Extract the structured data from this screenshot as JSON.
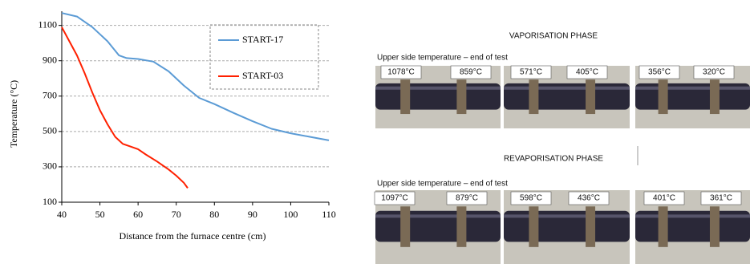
{
  "chart_data": {
    "type": "line",
    "xlabel": "Distance from the  furnace centre  (cm)",
    "ylabel": "Temperature (°C)",
    "xlim": [
      40,
      110
    ],
    "xticks": [
      40,
      50,
      60,
      70,
      80,
      90,
      100,
      110
    ],
    "ylim": [
      100,
      1180
    ],
    "yticks": [
      100,
      300,
      500,
      700,
      900,
      1100
    ],
    "grid": true,
    "legend": "upper right",
    "series": [
      {
        "name": "START-17",
        "color": "#5b9bd5",
        "x": [
          40,
          44,
          48,
          52,
          55,
          57,
          60,
          64,
          68,
          72,
          76,
          80,
          85,
          90,
          95,
          100,
          105,
          110
        ],
        "values": [
          1170,
          1150,
          1090,
          1010,
          930,
          915,
          910,
          895,
          840,
          760,
          690,
          655,
          605,
          558,
          515,
          490,
          470,
          450
        ]
      },
      {
        "name": "START-03",
        "color": "#ff2000",
        "x": [
          40,
          42,
          44,
          46,
          48,
          50,
          52,
          54,
          56,
          58,
          60,
          62,
          65,
          68,
          70,
          72,
          73
        ],
        "values": [
          1090,
          1010,
          930,
          830,
          720,
          620,
          540,
          470,
          430,
          415,
          400,
          370,
          330,
          285,
          250,
          210,
          180
        ]
      }
    ]
  },
  "photos": {
    "phases": [
      {
        "title": "VAPORISATION PHASE",
        "caption": "Upper side temperature – end of test",
        "labels": [
          "1078°C",
          "859°C",
          "571°C",
          "405°C",
          "356°C",
          "320°C"
        ]
      },
      {
        "title": "REVAPORISATION PHASE",
        "caption": "Upper side temperature – end of test",
        "labels": [
          "1097°C",
          "879°C",
          "598°C",
          "436°C",
          "401°C",
          "361°C"
        ]
      }
    ]
  }
}
